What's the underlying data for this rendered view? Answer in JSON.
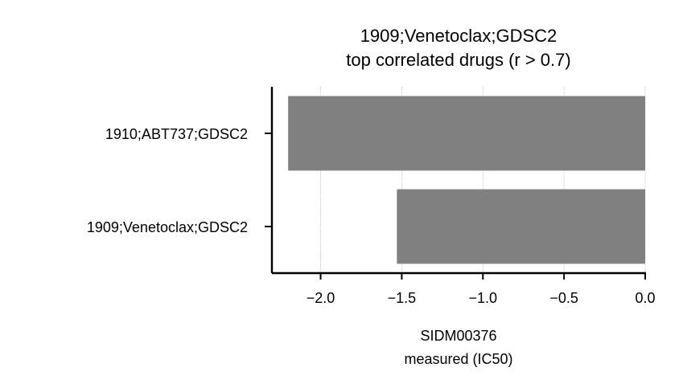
{
  "chart_data": {
    "type": "bar",
    "orientation": "horizontal",
    "title": "1909;Venetoclax;GDSC2",
    "subtitle": "top correlated drugs (r > 0.7)",
    "xlabel": "SIDM00376",
    "xlabel_line2": "measured (IC50)",
    "ylabel": "",
    "categories": [
      "1910;ABT737;GDSC2",
      "1909;Venetoclax;GDSC2"
    ],
    "values": [
      -2.2,
      -1.53
    ],
    "xlim": [
      -2.3,
      0.0
    ],
    "xticks": [
      -2.0,
      -1.5,
      -1.0,
      -0.5,
      0.0
    ],
    "xtick_labels": [
      "−2.0",
      "−1.5",
      "−1.0",
      "−0.5",
      "0.0"
    ],
    "grid": "x-dotted",
    "bar_color": "#808080",
    "grid_color": "#b0b0b0",
    "axis_color": "#000000"
  }
}
